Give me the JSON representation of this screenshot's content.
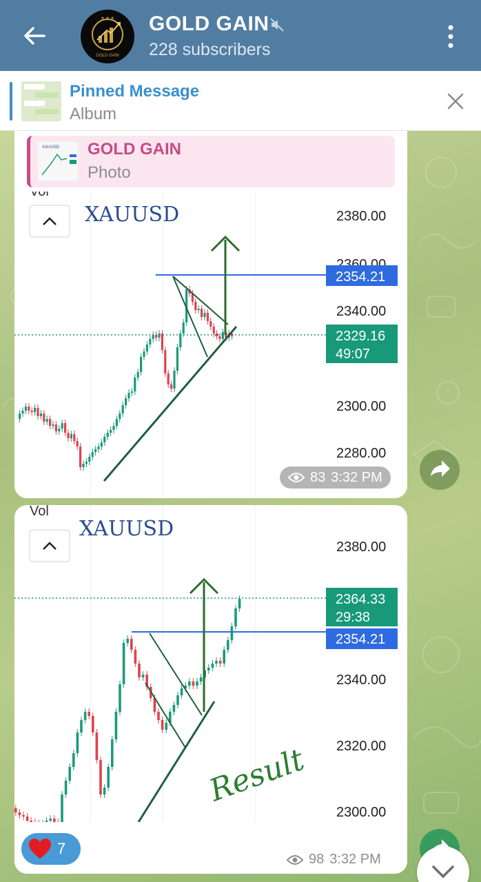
{
  "header": {
    "title": "GOLD GAIN",
    "subscribers": "228 subscribers",
    "avatar_text": "GOLD GAIN"
  },
  "pinned": {
    "title": "Pinned Message",
    "subtitle": "Album"
  },
  "messages": [
    {
      "reply": {
        "name": "GOLD GAIN",
        "type": "Photo"
      },
      "chart": {
        "symbol": "XAUUSD",
        "vol_label": "Vol",
        "price_labels": [
          "2380.00",
          "2360.00",
          "2340.00",
          "2300.00",
          "2280.00"
        ],
        "level_price": "2354.21",
        "current_price": "2329.16",
        "countdown": "49:07"
      },
      "views": "83",
      "time": "3:32 PM"
    },
    {
      "chart": {
        "symbol": "XAUUSD",
        "vol_label": "Vol",
        "price_labels": [
          "2380.00",
          "2340.00",
          "2320.00",
          "2300.00"
        ],
        "level_price": "2354.21",
        "current_price": "2364.33",
        "countdown": "29:38",
        "annotation": "Result"
      },
      "reaction": {
        "emoji": "heart",
        "count": "7"
      },
      "views": "98",
      "time": "3:32 PM"
    }
  ],
  "colors": {
    "header_bg": "#517da2",
    "accent_blue": "#3a8fcc",
    "reply_pink": "#c74a85",
    "candle_up": "#1b9a7b",
    "candle_down": "#e0414f",
    "level_badge": "#2f6be0",
    "price_badge": "#17997a",
    "annotation_green": "#2e7d32"
  }
}
